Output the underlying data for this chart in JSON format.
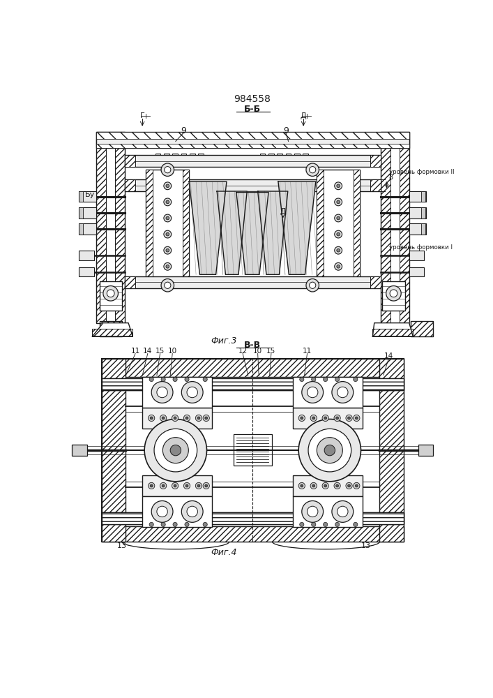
{
  "title": "984558",
  "title_fontsize": 10,
  "background_color": "#ffffff",
  "line_color": "#1a1a1a",
  "fig3_label": "Б-Б",
  "fig4_label": "В-В",
  "fig3_caption": "Фиг.3",
  "fig4_caption": "Фиг.4",
  "Urovn2": "уровень формовки II",
  "Urovn1": "уровень формовки I",
  "label_G": "Г",
  "label_D": "Д",
  "label_B": "Бу",
  "label_8": "8"
}
